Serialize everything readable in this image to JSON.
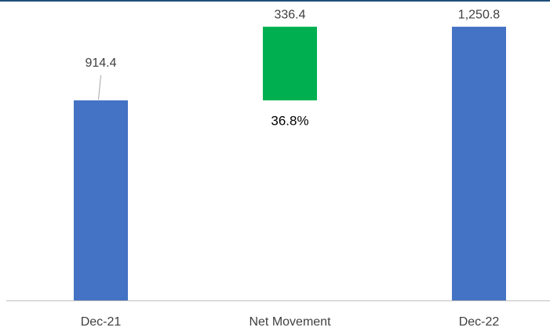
{
  "chart_data": {
    "type": "waterfall",
    "categories": [
      "Dec-21",
      "Net Movement",
      "Dec-22"
    ],
    "values": [
      914.4,
      336.4,
      1250.8
    ],
    "value_labels": [
      "914.4",
      "336.4",
      "1,250.8"
    ],
    "measures": [
      "absolute",
      "relative",
      "total"
    ],
    "colors": [
      "#4472c4",
      "#00b050",
      "#4472c4"
    ],
    "annotation": "36.8%",
    "ylim": [
      0,
      1373
    ]
  }
}
